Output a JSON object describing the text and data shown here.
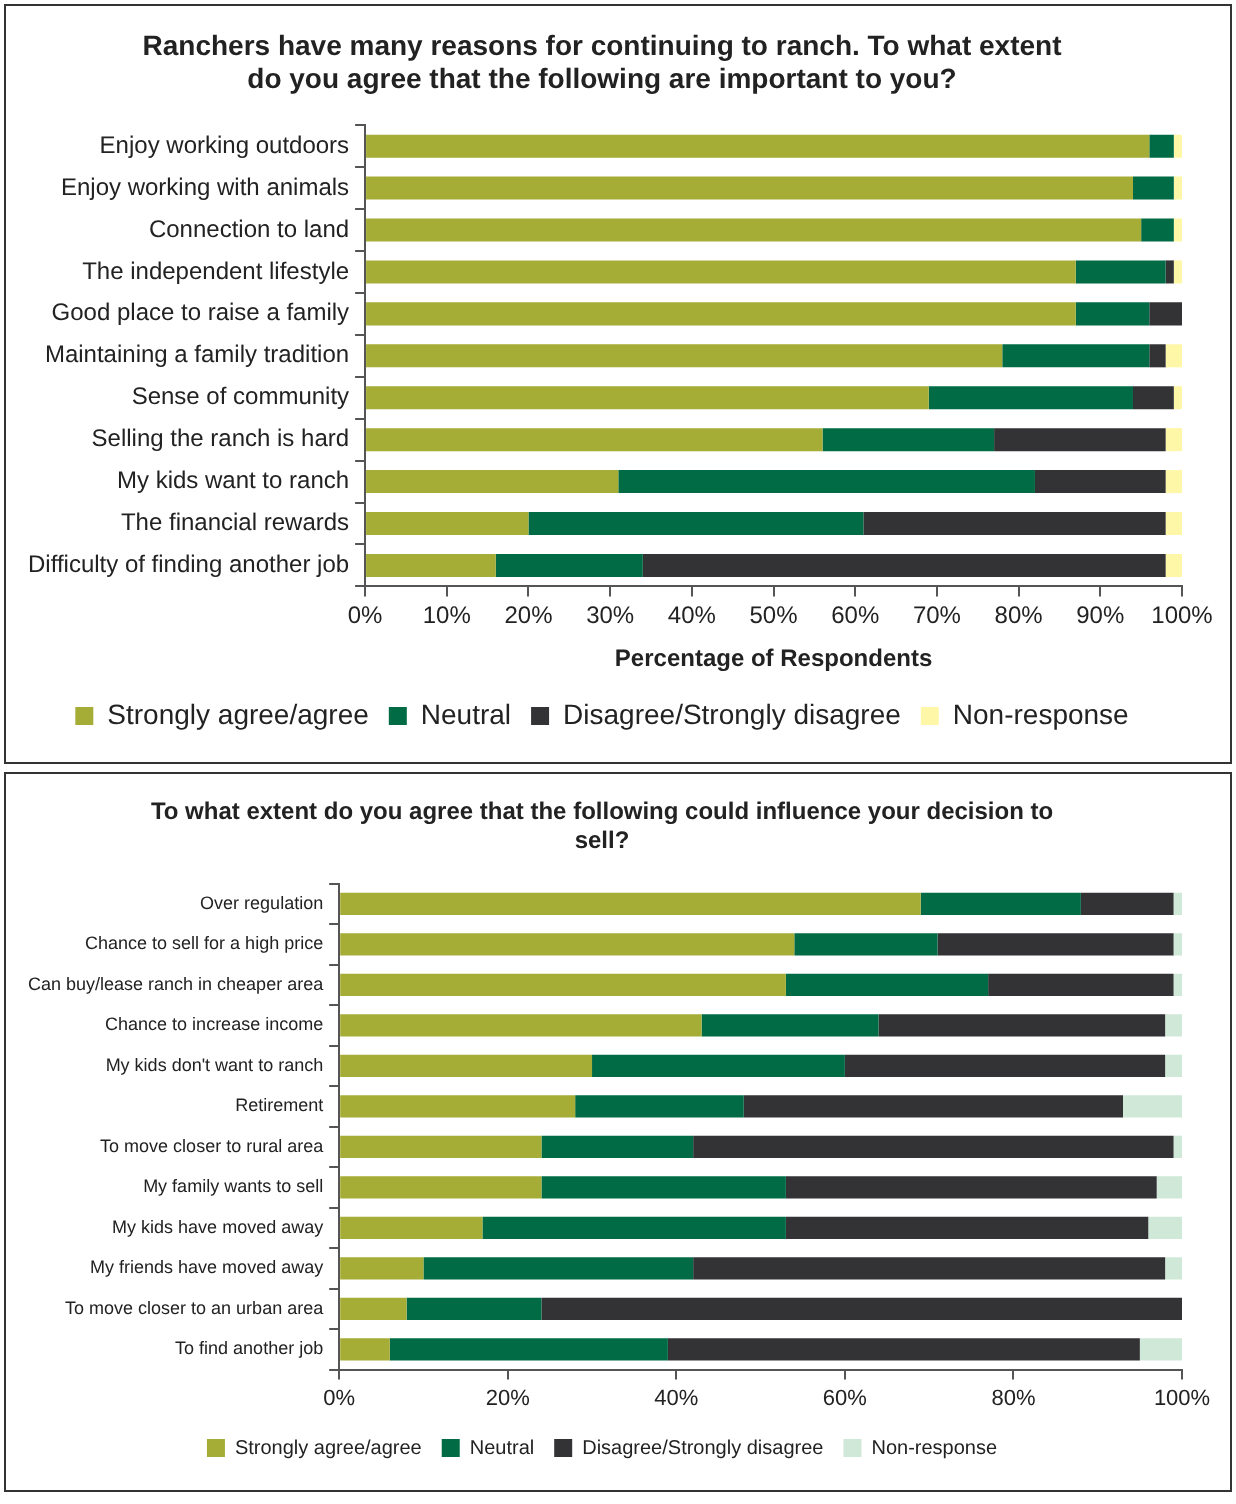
{
  "chart_data": [
    {
      "type": "bar",
      "orientation": "horizontal",
      "stacked": true,
      "title": "Ranchers have many reasons for continuing to ranch. To what extent do you agree that the following are important to you?",
      "xlabel": "Percentage of Respondents",
      "legend": "bottom",
      "categories": [
        "Enjoy working outdoors",
        "Enjoy working with animals",
        "Connection to land",
        "The independent lifestyle",
        "Good place to raise a family",
        "Maintaining a family tradition",
        "Sense of community",
        "Selling the ranch is hard",
        "My kids want to ranch",
        "The financial rewards",
        "Difficulty of finding another job"
      ],
      "xlim": [
        0,
        100
      ],
      "xticks": [
        {
          "value": 0,
          "label": "0%"
        },
        {
          "value": 10,
          "label": "10%"
        },
        {
          "value": 20,
          "label": "20%"
        },
        {
          "value": 30,
          "label": "30%"
        },
        {
          "value": 40,
          "label": "40%"
        },
        {
          "value": 50,
          "label": "50%"
        },
        {
          "value": 60,
          "label": "60%"
        },
        {
          "value": 70,
          "label": "70%"
        },
        {
          "value": 80,
          "label": "80%"
        },
        {
          "value": 90,
          "label": "90%"
        },
        {
          "value": 100,
          "label": "100%"
        }
      ],
      "series": [
        {
          "name": "Strongly agree/agree",
          "color": "#a5ad36",
          "values": [
            96,
            94,
            95,
            87,
            87,
            78,
            69,
            56,
            31,
            20,
            16
          ]
        },
        {
          "name": "Neutral",
          "color": "#006b45",
          "values": [
            3,
            5,
            4,
            11,
            9,
            18,
            25,
            21,
            51,
            41,
            18
          ]
        },
        {
          "name": "Disagree/Strongly disagree",
          "color": "#333336",
          "values": [
            0,
            0,
            0,
            1,
            4,
            2,
            5,
            21,
            16,
            37,
            64
          ]
        },
        {
          "name": "Non-response",
          "color": "#fff7a8",
          "values": [
            1,
            1,
            1,
            1,
            0,
            2,
            1,
            2,
            2,
            2,
            2
          ]
        }
      ]
    },
    {
      "type": "bar",
      "orientation": "horizontal",
      "stacked": true,
      "title": "To what extent do you agree that the following could influence your decision to sell?",
      "legend": "bottom",
      "categories": [
        "Over regulation",
        "Chance to sell for a high price",
        "Can buy/lease ranch in cheaper area",
        "Chance to increase income",
        "My kids don't want to ranch",
        "Retirement",
        "To move closer to rural area",
        "My family wants to sell",
        "My kids have moved away",
        "My friends have moved away",
        "To move closer to an urban area",
        "To find another job"
      ],
      "xlim": [
        0,
        100
      ],
      "xticks": [
        {
          "value": 0,
          "label": "0%"
        },
        {
          "value": 20,
          "label": "20%"
        },
        {
          "value": 40,
          "label": "40%"
        },
        {
          "value": 60,
          "label": "60%"
        },
        {
          "value": 80,
          "label": "80%"
        },
        {
          "value": 100,
          "label": "100%"
        }
      ],
      "series": [
        {
          "name": "Strongly agree/agree",
          "color": "#a5ad36",
          "values": [
            69,
            54,
            53,
            43,
            30,
            28,
            24,
            24,
            17,
            10,
            8,
            6
          ]
        },
        {
          "name": "Neutral",
          "color": "#006b45",
          "values": [
            19,
            17,
            24,
            21,
            30,
            20,
            18,
            29,
            36,
            32,
            16,
            33
          ]
        },
        {
          "name": "Disagree/Strongly disagree",
          "color": "#333336",
          "values": [
            11,
            28,
            22,
            34,
            38,
            45,
            57,
            44,
            43,
            56,
            76,
            56
          ]
        },
        {
          "name": "Non-response",
          "color": "#cfe8d8",
          "values": [
            1,
            1,
            1,
            2,
            2,
            7,
            1,
            3,
            4,
            2,
            0,
            5
          ]
        }
      ]
    }
  ]
}
